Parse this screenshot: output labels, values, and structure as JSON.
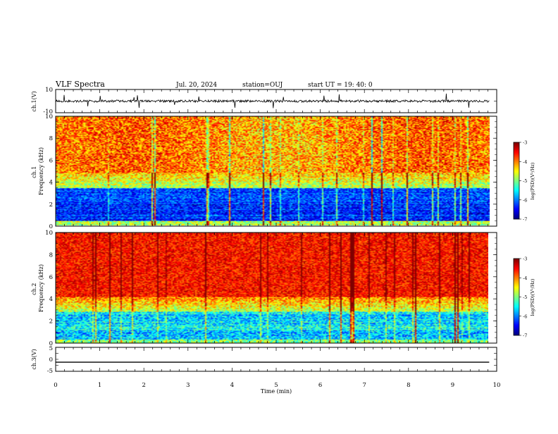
{
  "header": {
    "title": "VLF Spectra",
    "date": "Jul. 20, 2024",
    "station": "station=OUJ",
    "start": "start UT = 19: 40: 0"
  },
  "chart_data": [
    {
      "type": "line",
      "panel": "ch1-waveform",
      "ylabel": "ch.1(V)",
      "ylim": [
        -10,
        10
      ],
      "y_tick_labels": [
        "10",
        "-10"
      ],
      "x_range": [
        0,
        9.83
      ],
      "baseline": 0,
      "noise_amplitude": 1.0,
      "spike_amplitude": 6
    },
    {
      "type": "heatmap",
      "panel": "ch1-spectrogram",
      "ylabel": "ch.1\nFrequency (kHz)",
      "xlim": [
        0,
        10
      ],
      "ylim": [
        0,
        10
      ],
      "y_ticks": [
        0,
        2,
        4,
        6,
        8,
        10
      ],
      "x_range": [
        0,
        9.83
      ],
      "colorbar": {
        "label": "log(PSD)(V²/Hz)",
        "range": [
          -7,
          -3
        ],
        "ticks": [
          -3,
          -4,
          -5,
          -6,
          -7
        ]
      }
    },
    {
      "type": "heatmap",
      "panel": "ch2-spectrogram",
      "ylabel": "ch.2\nFrequency (kHz)",
      "xlim": [
        0,
        10
      ],
      "ylim": [
        0,
        10
      ],
      "y_ticks": [
        0,
        2,
        4,
        6,
        8,
        10
      ],
      "x_range": [
        0,
        9.83
      ],
      "colorbar": {
        "label": "log(PSD)(V²/Hz)",
        "range": [
          -7,
          -3
        ],
        "ticks": [
          -3,
          -4,
          -5,
          -6,
          -7
        ]
      }
    },
    {
      "type": "line",
      "panel": "ch3-waveform",
      "ylabel": "ch.3(V)",
      "ylim": [
        -5,
        5
      ],
      "y_tick_labels": [
        "5",
        "0",
        "-5"
      ],
      "x_range": [
        0,
        9.83
      ],
      "value": -1.2,
      "xlabel": "Time (min)",
      "x_ticks": [
        0,
        1,
        2,
        3,
        4,
        5,
        6,
        7,
        8,
        9,
        10
      ]
    }
  ]
}
